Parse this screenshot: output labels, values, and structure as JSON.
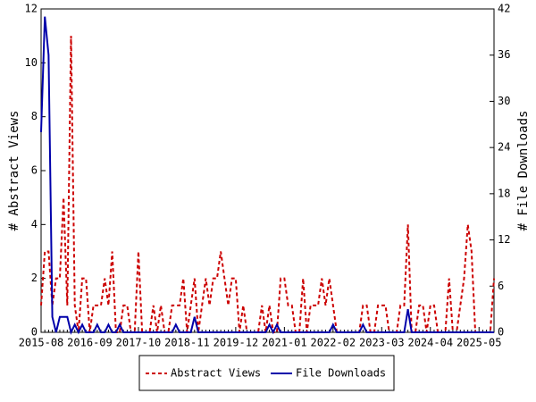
{
  "chart_data": {
    "type": "line",
    "categories": [
      "2015-08",
      null,
      null,
      null,
      null,
      null,
      null,
      null,
      null,
      null,
      null,
      null,
      null,
      "2016-09",
      null,
      null,
      null,
      null,
      null,
      null,
      null,
      null,
      null,
      null,
      null,
      null,
      "2017-10",
      null,
      null,
      null,
      null,
      null,
      null,
      null,
      null,
      null,
      null,
      null,
      null,
      "2018-11",
      null,
      null,
      null,
      null,
      null,
      null,
      null,
      null,
      null,
      null,
      null,
      null,
      "2019-12",
      null,
      null,
      null,
      null,
      null,
      null,
      null,
      null,
      null,
      null,
      null,
      null,
      "2021-01",
      null,
      null,
      null,
      null,
      null,
      null,
      null,
      null,
      null,
      null,
      null,
      null,
      "2022-02",
      null,
      null,
      null,
      null,
      null,
      null,
      null,
      null,
      null,
      null,
      null,
      null,
      "2023-03",
      null,
      null,
      null,
      null,
      null,
      null,
      null,
      null,
      null,
      null,
      null,
      null,
      "2024-04",
      null,
      null,
      null,
      null,
      null,
      null,
      null,
      null,
      null,
      null,
      null,
      null,
      "2025-05",
      null,
      null,
      null,
      null
    ],
    "ylabel": "# Abstract Views",
    "y2label": "# File Downloads",
    "ylim": [
      0,
      12
    ],
    "yticks": [
      0,
      2,
      4,
      6,
      8,
      10,
      12
    ],
    "y2lim": [
      0,
      42
    ],
    "y2ticks": [
      0,
      6,
      12,
      18,
      24,
      30,
      36,
      42
    ],
    "legend": "bottom",
    "series": [
      {
        "name": "Abstract Views",
        "color": "#cc0000",
        "dashed": true,
        "values": [
          1,
          3,
          3,
          1,
          2,
          2,
          5,
          1,
          11,
          1,
          0,
          2,
          2,
          0,
          1,
          1,
          1,
          2,
          1,
          3,
          0,
          0,
          1,
          1,
          0,
          0,
          3,
          0,
          0,
          0,
          1,
          0,
          1,
          0,
          0,
          1,
          1,
          1,
          2,
          0,
          1,
          2,
          0,
          1,
          2,
          1,
          2,
          2,
          3,
          2,
          1,
          2,
          2,
          0,
          1,
          0,
          0,
          0,
          0,
          1,
          0,
          1,
          0,
          0,
          2,
          2,
          1,
          1,
          0,
          0,
          2,
          0,
          1,
          1,
          1,
          2,
          1,
          2,
          1,
          0,
          0,
          0,
          0,
          0,
          0,
          0,
          1,
          1,
          0,
          0,
          1,
          1,
          1,
          0,
          0,
          0,
          1,
          1,
          4,
          0,
          0,
          1,
          1,
          0,
          1,
          1,
          0,
          0,
          0,
          2,
          0,
          0,
          1,
          2,
          4,
          3,
          0,
          0,
          0,
          0,
          0,
          2
        ]
      },
      {
        "name": "File Downloads",
        "color": "#0000aa",
        "axis": "y2",
        "values": [
          26,
          41,
          36,
          2,
          0,
          2,
          2,
          2,
          0,
          1,
          0,
          1,
          0,
          0,
          0,
          1,
          0,
          0,
          1,
          0,
          0,
          1,
          0,
          0,
          0,
          0,
          0,
          0,
          0,
          0,
          0,
          0,
          0,
          0,
          0,
          0,
          1,
          0,
          0,
          0,
          0,
          2,
          0,
          0,
          0,
          0,
          0,
          0,
          0,
          0,
          0,
          0,
          0,
          0,
          0,
          0,
          0,
          0,
          0,
          0,
          0,
          1,
          0,
          1,
          0,
          0,
          0,
          0,
          0,
          0,
          0,
          0,
          0,
          0,
          0,
          0,
          0,
          0,
          1,
          0,
          0,
          0,
          0,
          0,
          0,
          0,
          1,
          0,
          0,
          0,
          0,
          0,
          0,
          0,
          0,
          0,
          0,
          0,
          3,
          0,
          0,
          0,
          0,
          0,
          0,
          0,
          0,
          0,
          0,
          0,
          0,
          0,
          0,
          0,
          0,
          0,
          0,
          0,
          0,
          0,
          0,
          0
        ]
      }
    ]
  }
}
